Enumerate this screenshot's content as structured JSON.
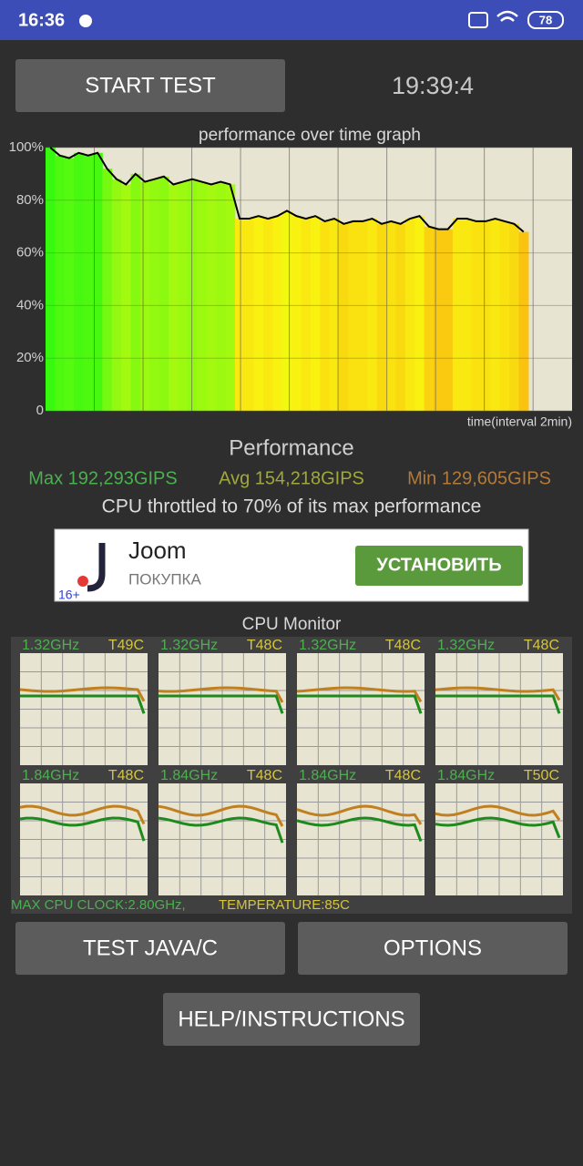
{
  "status_bar": {
    "time": "16:36",
    "battery": "78"
  },
  "buttons": {
    "start": "START TEST",
    "test": "TEST JAVA/C",
    "options": "OPTIONS",
    "help": "HELP/INSTRUCTIONS"
  },
  "timer": "19:39:4",
  "graph": {
    "title": "performance over time graph",
    "x_label": "time(interval 2min)",
    "ylim": [
      0,
      100
    ],
    "yticks": [
      {
        "value": 0,
        "label": "0"
      },
      {
        "value": 20,
        "label": "20%"
      },
      {
        "value": 40,
        "label": "40%"
      },
      {
        "value": 60,
        "label": "60%"
      },
      {
        "value": 80,
        "label": "80%"
      },
      {
        "value": 100,
        "label": "100%"
      }
    ],
    "values": [
      100,
      97,
      96,
      98,
      97,
      98,
      92,
      88,
      86,
      90,
      87,
      88,
      89,
      86,
      87,
      88,
      87,
      86,
      87,
      86,
      73,
      73,
      74,
      73,
      74,
      76,
      74,
      73,
      74,
      72,
      73,
      71,
      72,
      72,
      73,
      71,
      72,
      71,
      73,
      74,
      70,
      69,
      69,
      73,
      73,
      72,
      72,
      73,
      72,
      71,
      68
    ]
  },
  "performance": {
    "title": "Performance",
    "max": "Max 192,293GIPS",
    "avg": "Avg 154,218GIPS",
    "min": "Min 129,605GIPS",
    "note": "CPU throttled to 70% of its max performance"
  },
  "ad": {
    "name": "Joom",
    "category": "ПОКУПКА",
    "button": "УСТАНОВИТЬ",
    "age": "16+"
  },
  "cpu_monitor": {
    "title": "CPU Monitor",
    "cores": [
      {
        "freq": "1.32GHz",
        "temp": "T49C"
      },
      {
        "freq": "1.32GHz",
        "temp": "T48C"
      },
      {
        "freq": "1.32GHz",
        "temp": "T48C"
      },
      {
        "freq": "1.32GHz",
        "temp": "T48C"
      },
      {
        "freq": "1.84GHz",
        "temp": "T48C"
      },
      {
        "freq": "1.84GHz",
        "temp": "T48C"
      },
      {
        "freq": "1.84GHz",
        "temp": "T48C"
      },
      {
        "freq": "1.84GHz",
        "temp": "T50C"
      }
    ],
    "max_clock": "MAX CPU CLOCK:2.80GHz,",
    "temperature": "TEMPERATURE:85C"
  }
}
